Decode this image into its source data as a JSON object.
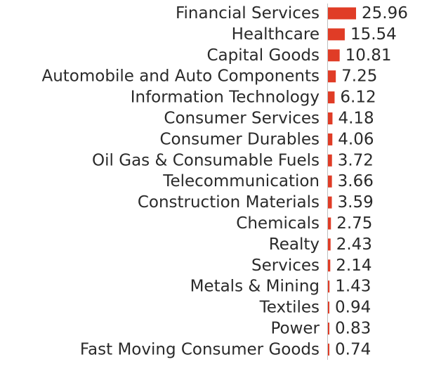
{
  "chart_data": {
    "type": "bar",
    "orientation": "horizontal",
    "categories": [
      "Financial Services",
      "Healthcare",
      "Capital Goods",
      "Automobile and Auto Components",
      "Information Technology",
      "Consumer Services",
      "Consumer Durables",
      "Oil Gas & Consumable Fuels",
      "Telecommunication",
      "Construction Materials",
      "Chemicals",
      "Realty",
      "Services",
      "Metals & Mining",
      "Textiles",
      "Power",
      "Fast Moving Consumer Goods"
    ],
    "values": [
      25.96,
      15.54,
      10.81,
      7.25,
      6.12,
      4.18,
      4.06,
      3.72,
      3.66,
      3.59,
      2.75,
      2.43,
      2.14,
      1.43,
      0.94,
      0.83,
      0.74
    ],
    "value_labels": [
      "25.96",
      "15.54",
      "10.81",
      "7.25",
      "6.12",
      "4.18",
      "4.06",
      "3.72",
      "3.66",
      "3.59",
      "2.75",
      "2.43",
      "2.14",
      "1.43",
      "0.94",
      "0.83",
      "0.74"
    ],
    "title": "",
    "xlabel": "",
    "ylabel": "",
    "grid": false,
    "legend": "none",
    "colors": {
      "bar": "#e03c26",
      "axis": "#bfbfbf",
      "text": "#2a2a2a"
    }
  }
}
